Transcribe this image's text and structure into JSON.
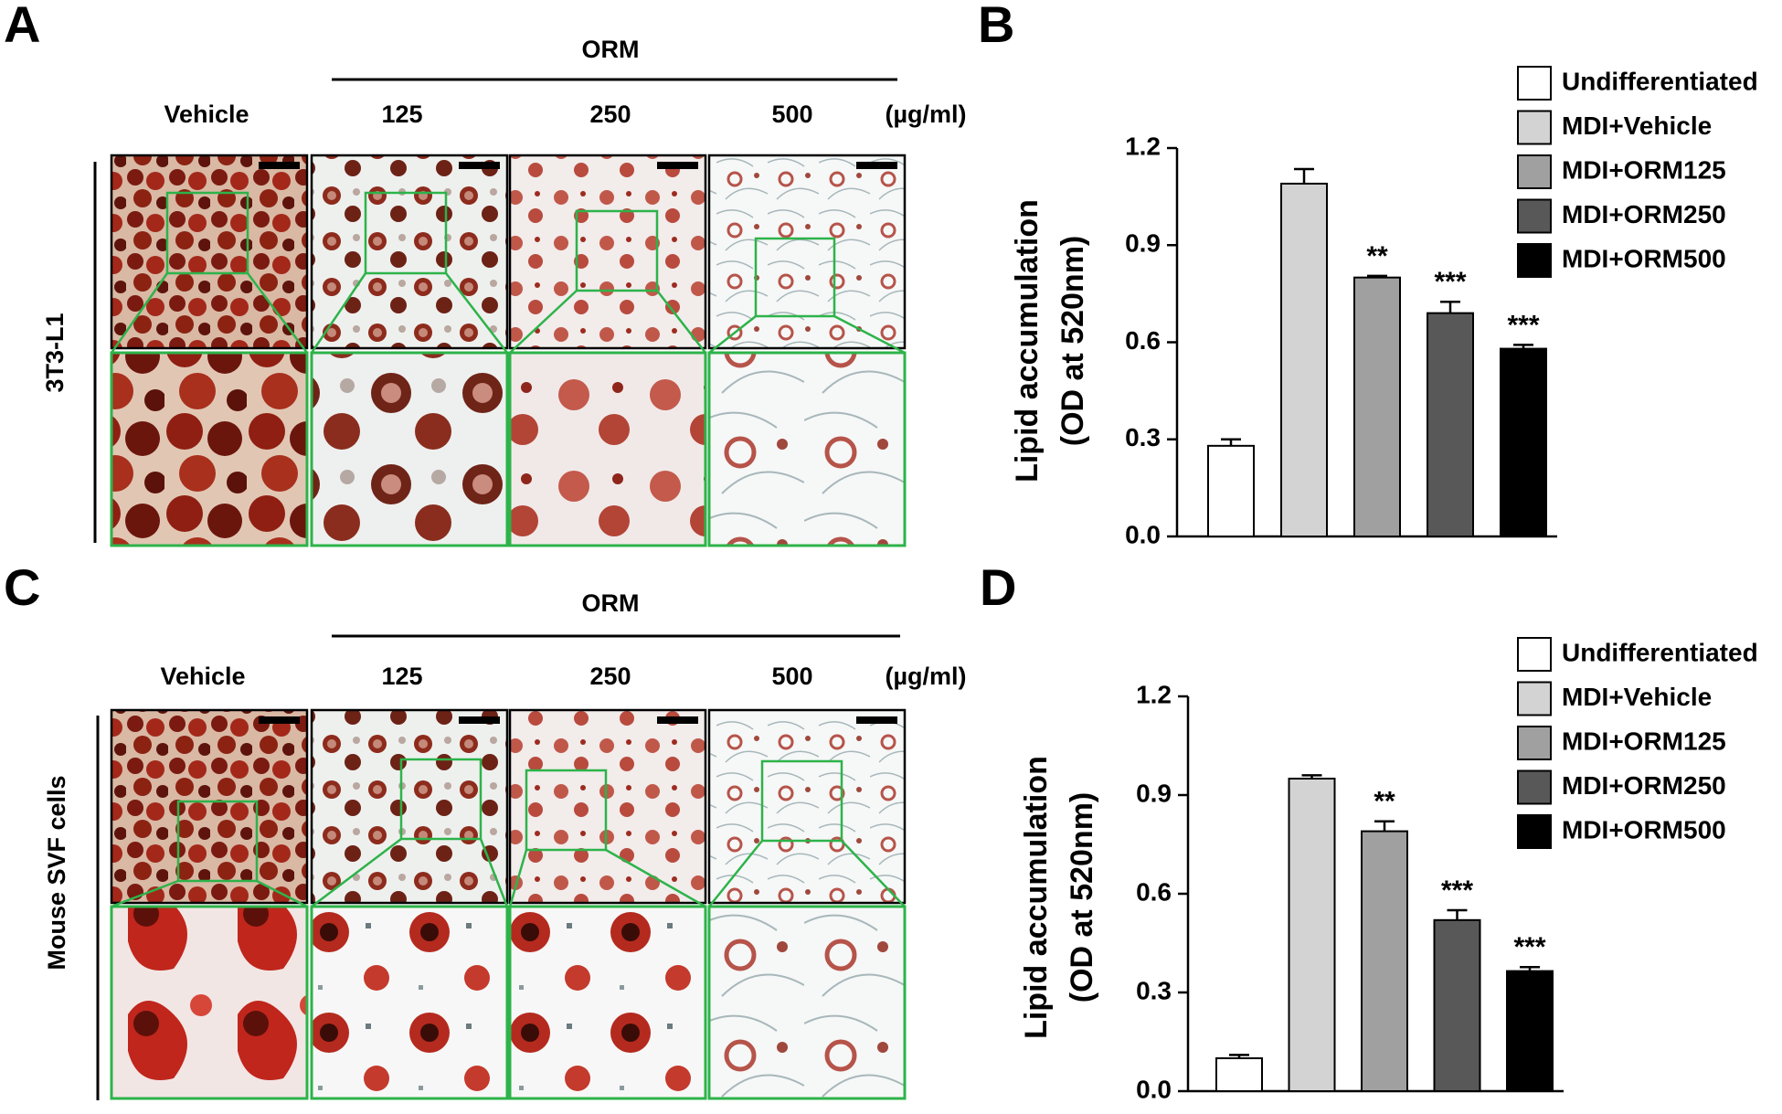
{
  "panels": {
    "a": "A",
    "b": "B",
    "c": "C",
    "d": "D"
  },
  "micrographs": [
    {
      "treatment_label": "ORM",
      "columns": [
        "Vehicle",
        "125",
        "250",
        "500"
      ],
      "unit": "(µg/ml)",
      "row_label": "3T3-L1"
    },
    {
      "treatment_label": "ORM",
      "columns": [
        "Vehicle",
        "125",
        "250",
        "500"
      ],
      "unit": "(µg/ml)",
      "row_label": "Mouse SVF cells"
    }
  ],
  "chart_data": [
    {
      "type": "bar",
      "y_label": [
        "Lipid accumulation",
        "(OD at 520nm)"
      ],
      "categories": [
        "Undifferentiated",
        "MDI+Vehicle",
        "MDI+ORM125",
        "MDI+ORM250",
        "MDI+ORM500"
      ],
      "colors": [
        "#ffffff",
        "#d3d3d3",
        "#a0a0a0",
        "#585858",
        "#000000"
      ],
      "values": [
        0.28,
        1.09,
        0.8,
        0.69,
        0.58
      ],
      "errors": [
        0.02,
        0.045,
        0.005,
        0.035,
        0.012
      ],
      "significance": [
        null,
        null,
        "**",
        "***",
        "***"
      ],
      "ylim": [
        0,
        1.2
      ],
      "yticks": [
        {
          "value": 0,
          "label": "0.0"
        },
        0.3,
        0.6,
        0.9,
        1.2
      ]
    },
    {
      "type": "bar",
      "y_label": [
        "Lipid accumulation",
        "(OD at 520nm)"
      ],
      "categories": [
        "Undifferentiated",
        "MDI+Vehicle",
        "MDI+ORM125",
        "MDI+ORM250",
        "MDI+ORM500"
      ],
      "colors": [
        "#ffffff",
        "#d3d3d3",
        "#a0a0a0",
        "#585858",
        "#000000"
      ],
      "values": [
        0.1,
        0.95,
        0.79,
        0.52,
        0.365
      ],
      "errors": [
        0.01,
        0.01,
        0.03,
        0.03,
        0.012
      ],
      "significance": [
        null,
        null,
        "**",
        "***",
        "***"
      ],
      "ylim": [
        0,
        1.2
      ],
      "yticks": [
        {
          "value": 0,
          "label": "0.0"
        },
        0.3,
        0.6,
        0.9,
        1.2
      ]
    }
  ]
}
